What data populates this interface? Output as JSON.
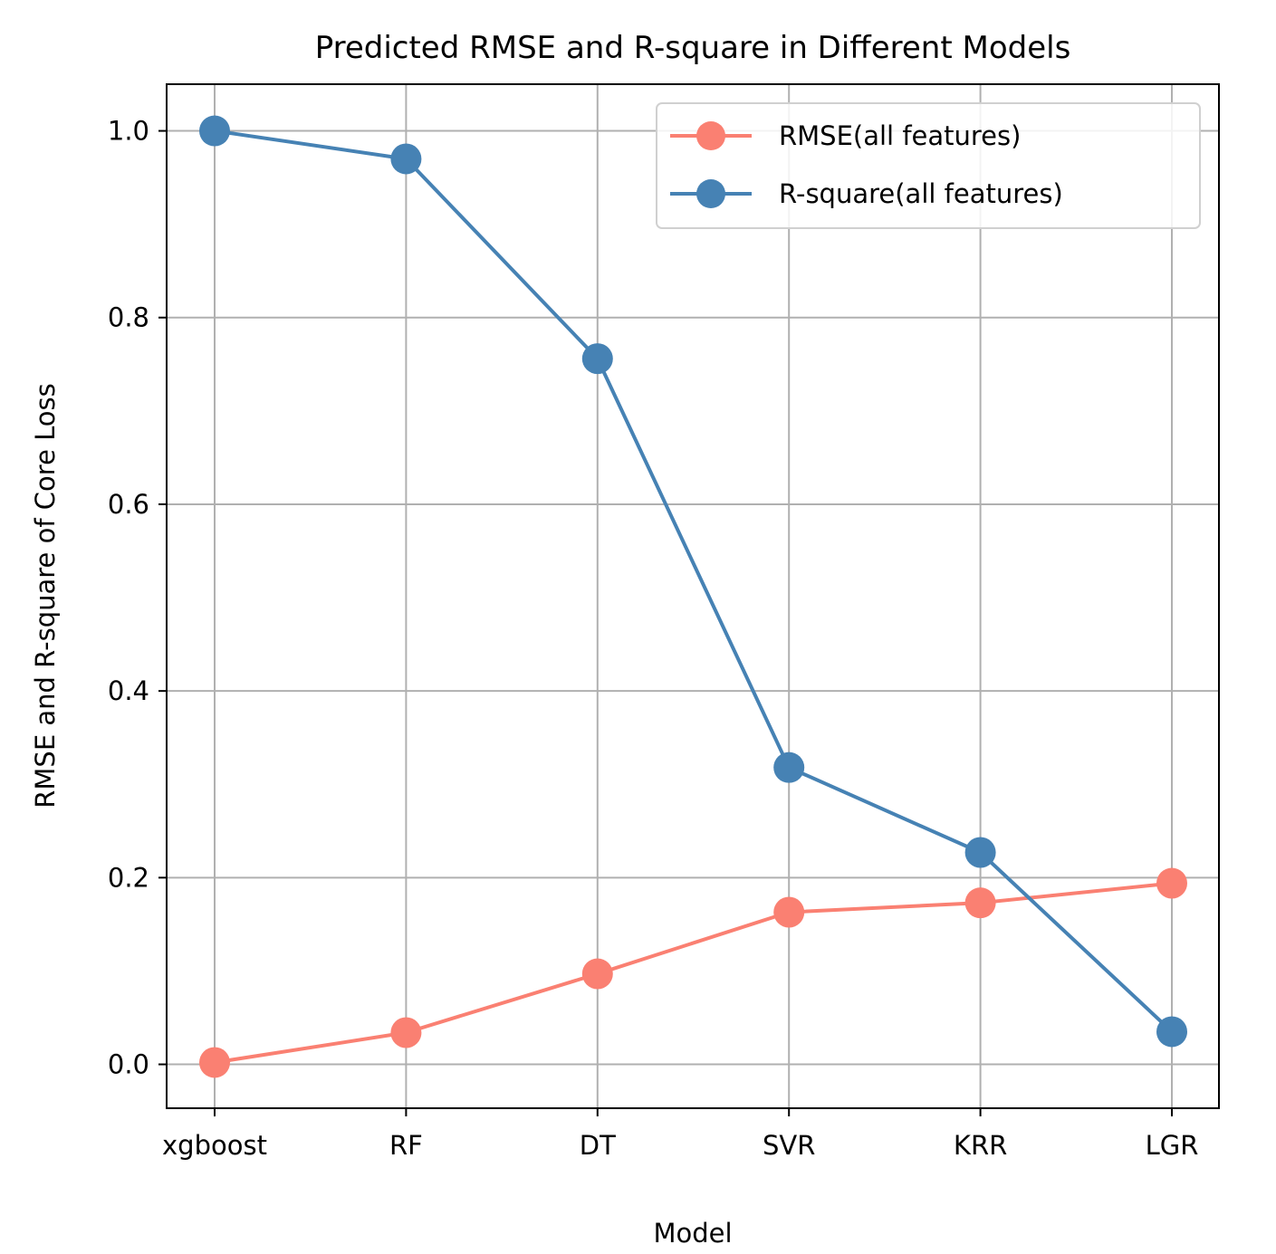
{
  "chart_data": {
    "type": "line",
    "title": "Predicted RMSE and R-square in Different Models",
    "xlabel": "Model",
    "ylabel": "RMSE and R-square of Core Loss",
    "categories": [
      "xgboost",
      "RF",
      "DT",
      "SVR",
      "KRR",
      "LGR"
    ],
    "ylim": [
      -0.047,
      1.05
    ],
    "yticks": [
      0.0,
      0.2,
      0.4,
      0.6,
      0.8,
      1.0
    ],
    "ytick_labels": [
      "0.0",
      "0.2",
      "0.4",
      "0.6",
      "0.8",
      "1.0"
    ],
    "grid": true,
    "legend_position": "top-right",
    "series": [
      {
        "name": "RMSE(all features)",
        "color": "#fa8072",
        "marker": "circle",
        "values": [
          0.002,
          0.034,
          0.097,
          0.163,
          0.173,
          0.194
        ]
      },
      {
        "name": "R-square(all features)",
        "color": "#4682b4",
        "marker": "circle",
        "values": [
          1.0,
          0.97,
          0.756,
          0.318,
          0.227,
          0.035
        ]
      }
    ]
  }
}
